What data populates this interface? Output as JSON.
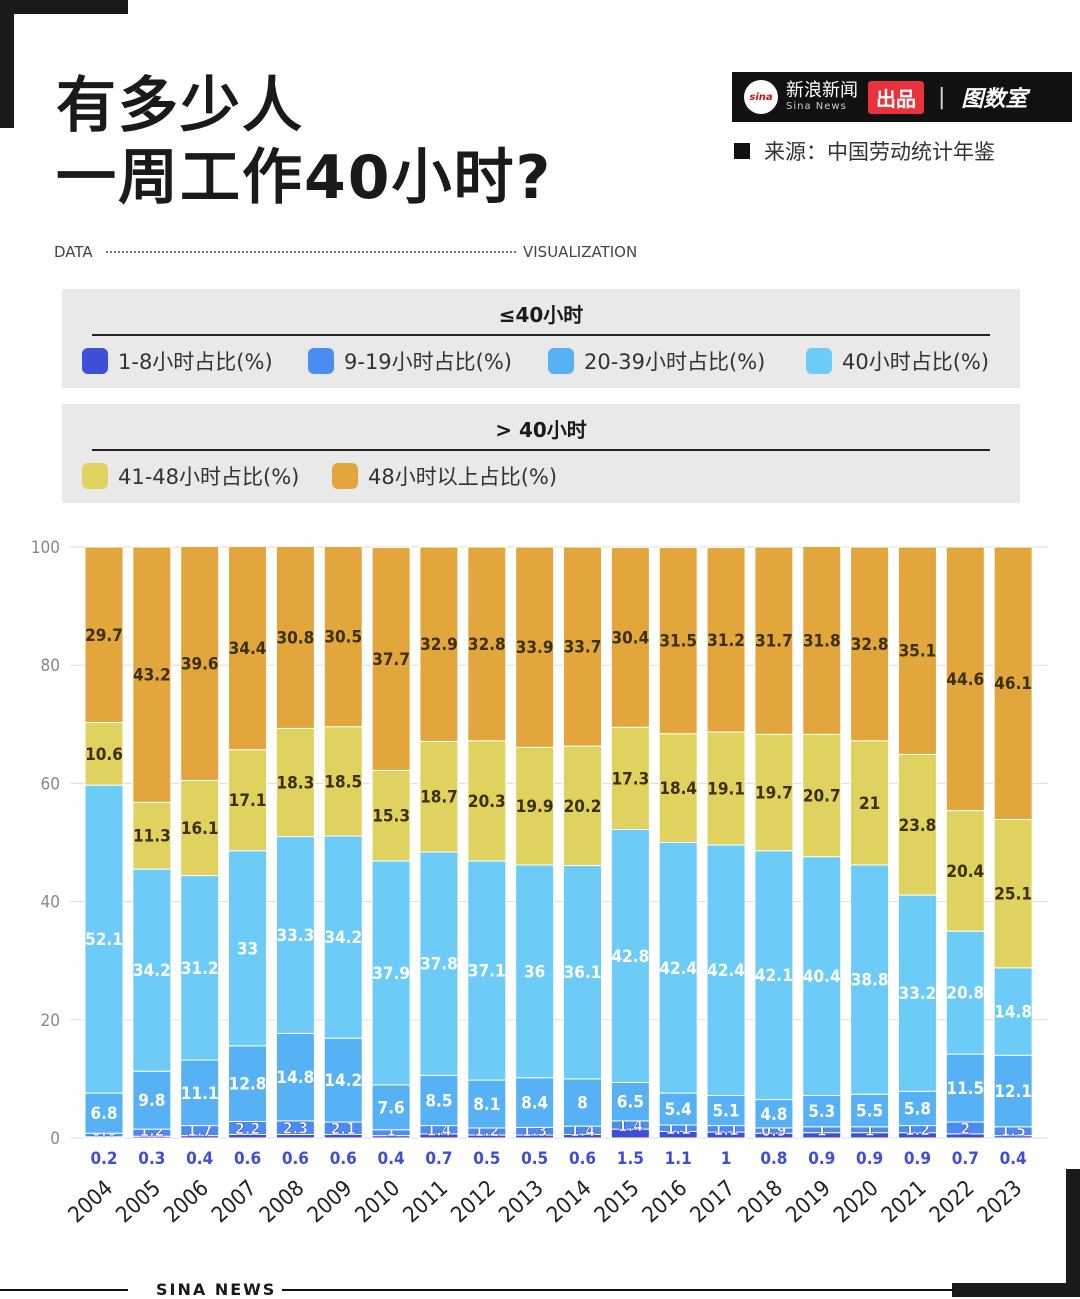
{
  "title_line1": "有多少人",
  "title_line2": "一周工作40小时?",
  "data_label": "DATA",
  "visualization_label": "VISUALIZATION",
  "brand": {
    "logo": "sina",
    "name_zh": "新浪新闻",
    "name_en": "Sina News",
    "tag": "出品",
    "divider": "|",
    "room": "图数室"
  },
  "source": "来源：中国劳动统计年鉴",
  "footer": "SINA NEWS",
  "legend": {
    "group1_title": "≤40小时",
    "group2_title": "> 40小时",
    "items": [
      {
        "label": "1-8小时占比(%)",
        "color": "#3d4fd6"
      },
      {
        "label": "9-19小时占比(%)",
        "color": "#4a8cf0"
      },
      {
        "label": "20-39小时占比(%)",
        "color": "#56b1f5"
      },
      {
        "label": "40小时占比(%)",
        "color": "#6ccbf7"
      },
      {
        "label": "41-48小时占比(%)",
        "color": "#e0d25e"
      },
      {
        "label": "48小时以上占比(%)",
        "color": "#e2a63c"
      }
    ]
  },
  "chart_data": {
    "type": "bar",
    "stacked": true,
    "categories": [
      "2004",
      "2005",
      "2006",
      "2007",
      "2008",
      "2009",
      "2010",
      "2011",
      "2012",
      "2013",
      "2014",
      "2015",
      "2016",
      "2017",
      "2018",
      "2019",
      "2020",
      "2021",
      "2022",
      "2023"
    ],
    "ylim": [
      0,
      100
    ],
    "yticks": [
      0,
      20,
      40,
      60,
      80,
      100
    ],
    "grid": true,
    "series": [
      {
        "name": "1-8小时占比(%)",
        "color": "#3d4fd6",
        "values": [
          0.2,
          0.3,
          0.4,
          0.6,
          0.6,
          0.6,
          0.4,
          0.7,
          0.5,
          0.5,
          0.6,
          1.5,
          1.1,
          1,
          0.8,
          0.9,
          0.9,
          0.9,
          0.7,
          0.4
        ]
      },
      {
        "name": "9-19小时占比(%)",
        "color": "#4a8cf0",
        "values": [
          0.6,
          1.2,
          1.7,
          2.2,
          2.3,
          2.1,
          1,
          1.4,
          1.2,
          1.3,
          1.4,
          1.4,
          1.1,
          1.1,
          0.9,
          1,
          1,
          1.2,
          2,
          1.5
        ]
      },
      {
        "name": "20-39小时占比(%)",
        "color": "#56b1f5",
        "values": [
          6.8,
          9.8,
          11.1,
          12.8,
          14.8,
          14.2,
          7.6,
          8.5,
          8.1,
          8.4,
          8,
          6.5,
          5.4,
          5.1,
          4.8,
          5.3,
          5.5,
          5.8,
          11.5,
          12.1
        ]
      },
      {
        "name": "40小时占比(%)",
        "color": "#6ccbf7",
        "values": [
          52.1,
          34.2,
          31.2,
          33,
          33.3,
          34.2,
          37.9,
          37.8,
          37.1,
          36,
          36.1,
          42.8,
          42.4,
          42.4,
          42.1,
          40.4,
          38.8,
          33.2,
          20.8,
          14.8
        ]
      },
      {
        "name": "41-48小时占比(%)",
        "color": "#e0d25e",
        "values": [
          10.6,
          11.3,
          16.1,
          17.1,
          18.3,
          18.5,
          15.3,
          18.7,
          20.3,
          19.9,
          20.2,
          17.3,
          18.4,
          19.1,
          19.7,
          20.7,
          21,
          23.8,
          20.4,
          25.1
        ]
      },
      {
        "name": "48小时以上占比(%)",
        "color": "#e2a63c",
        "values": [
          29.7,
          43.2,
          39.6,
          34.4,
          30.8,
          30.5,
          37.7,
          32.9,
          32.8,
          33.9,
          33.7,
          30.4,
          31.5,
          31.2,
          31.7,
          31.8,
          32.8,
          35.1,
          44.6,
          46.1
        ]
      }
    ]
  }
}
